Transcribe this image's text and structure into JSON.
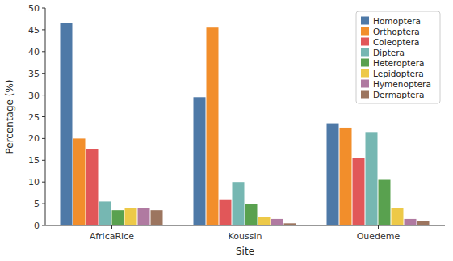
{
  "chart_data": {
    "type": "bar",
    "xlabel": "Site",
    "ylabel": "Percentage (%)",
    "categories": [
      "AfricaRice",
      "Koussin",
      "Ouedeme"
    ],
    "series": [
      {
        "name": "Homoptera",
        "color": "#4e79a7",
        "values": [
          46.5,
          29.5,
          23.5
        ]
      },
      {
        "name": "Orthoptera",
        "color": "#f28e2b",
        "values": [
          20.0,
          45.5,
          22.5
        ]
      },
      {
        "name": "Coleoptera",
        "color": "#e15759",
        "values": [
          17.5,
          6.0,
          15.5
        ]
      },
      {
        "name": "Diptera",
        "color": "#76b7b2",
        "values": [
          5.5,
          10.0,
          21.5
        ]
      },
      {
        "name": "Heteroptera",
        "color": "#59a14f",
        "values": [
          3.5,
          5.0,
          10.5
        ]
      },
      {
        "name": "Lepidoptera",
        "color": "#edc948",
        "values": [
          4.0,
          2.0,
          4.0
        ]
      },
      {
        "name": "Hymenoptera",
        "color": "#b07aa1",
        "values": [
          4.0,
          1.5,
          1.5
        ]
      },
      {
        "name": "Dermaptera",
        "color": "#9c755f",
        "values": [
          3.5,
          0.5,
          1.0
        ]
      }
    ],
    "ylim": [
      0,
      50
    ],
    "yticks": [
      0,
      5,
      10,
      15,
      20,
      25,
      30,
      35,
      40,
      45,
      50
    ],
    "grid": false,
    "legend": "upper right"
  }
}
